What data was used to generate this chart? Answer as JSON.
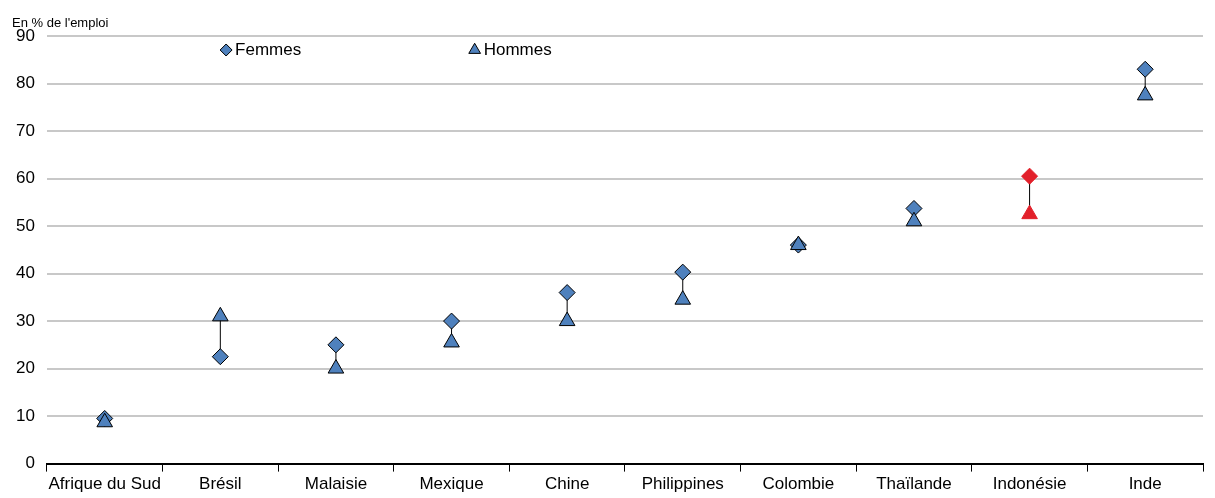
{
  "chart_data": {
    "type": "scatter",
    "ylabel": "En % de l'emploi",
    "categories": [
      "Afrique du Sud",
      "Brésil",
      "Malaisie",
      "Mexique",
      "Chine",
      "Philippines",
      "Colombie",
      "Thaïlande",
      "Indonésie",
      "Inde"
    ],
    "series": [
      {
        "name": "Femmes",
        "marker": "diamond",
        "color": "#4f81bd",
        "colors": [
          "#4f81bd",
          "#4f81bd",
          "#4f81bd",
          "#4f81bd",
          "#4f81bd",
          "#4f81bd",
          "#4f81bd",
          "#4f81bd",
          "#e2202a",
          "#4f81bd"
        ],
        "values": [
          9.5,
          22.5,
          25,
          30,
          36,
          40.3,
          46,
          53.7,
          60.5,
          83
        ]
      },
      {
        "name": "Hommes",
        "marker": "triangle",
        "color": "#4f81bd",
        "colors": [
          "#4f81bd",
          "#4f81bd",
          "#4f81bd",
          "#4f81bd",
          "#4f81bd",
          "#4f81bd",
          "#4f81bd",
          "#4f81bd",
          "#e2202a",
          "#4f81bd"
        ],
        "values": [
          8.7,
          31,
          20,
          25.5,
          30,
          34.5,
          46,
          51,
          52.5,
          77.5
        ]
      }
    ],
    "ylim": [
      0,
      90
    ],
    "yticks": [
      0,
      10,
      20,
      30,
      40,
      50,
      60,
      70,
      80,
      90
    ],
    "grid": "y",
    "legend": "top"
  }
}
